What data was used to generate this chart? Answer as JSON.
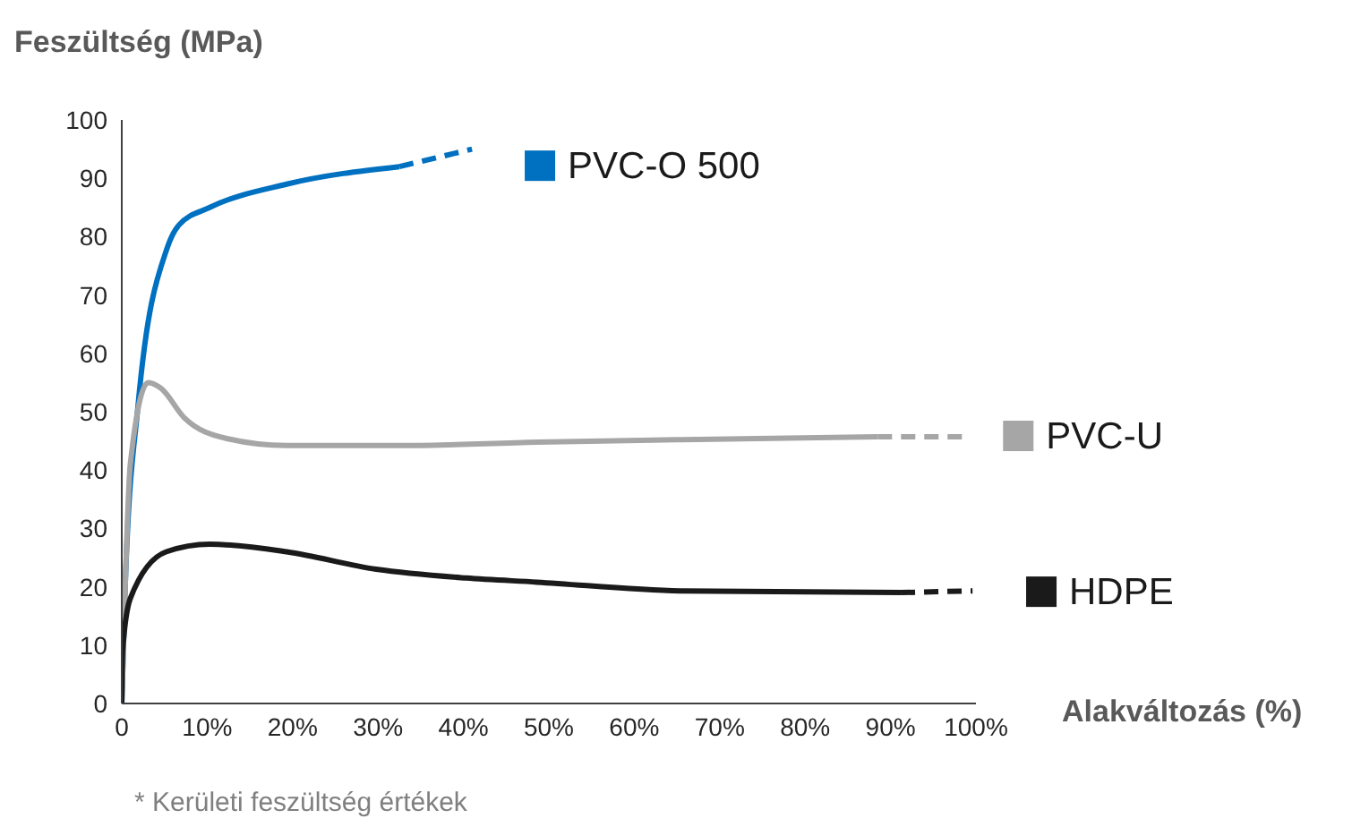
{
  "chart_data": {
    "type": "line",
    "title": "Feszültség (MPa)",
    "xlabel": "Alakváltozás (%)",
    "annotations": [
      "* Kerületi feszültség értékek"
    ],
    "xlim": [
      0,
      100
    ],
    "xticks": [
      {
        "value": 0,
        "label": "0"
      },
      {
        "value": 10,
        "label": "10%"
      },
      {
        "value": 20,
        "label": "20%"
      },
      {
        "value": 30,
        "label": "30%"
      },
      {
        "value": 40,
        "label": "40%"
      },
      {
        "value": 50,
        "label": "50%"
      },
      {
        "value": 60,
        "label": "60%"
      },
      {
        "value": 70,
        "label": "70%"
      },
      {
        "value": 80,
        "label": "80%"
      },
      {
        "value": 90,
        "label": "90%"
      },
      {
        "value": 100,
        "label": "100%"
      }
    ],
    "ylim": [
      0,
      100
    ],
    "yticks": [
      0,
      10,
      20,
      30,
      40,
      50,
      60,
      70,
      80,
      90,
      100
    ],
    "grid": false,
    "legend": "right",
    "marker": "none",
    "series": [
      {
        "name": "PVC-O 500",
        "color": "#0070c0",
        "line_style": "solid",
        "x": [
          0,
          0.4,
          1.9,
          5.3,
          6.7,
          10.3,
          19.3,
          32.5
        ],
        "values": [
          0,
          20,
          51,
          78,
          82,
          85,
          89,
          92
        ]
      },
      {
        "color": "#0070c0",
        "line_style": "dashed",
        "x": [
          32.5,
          41
        ],
        "values": [
          92,
          95
        ]
      },
      {
        "name": "PVC-U",
        "color": "#a6a6a6",
        "line_style": "solid",
        "x": [
          0,
          0.2,
          1,
          3.1,
          4.6,
          7.3,
          12.3,
          19.3,
          33,
          48.6,
          65,
          88.5
        ],
        "values": [
          0,
          10,
          41,
          55,
          54,
          49,
          45.4,
          44.2,
          44.2,
          44.8,
          45.2,
          45.7
        ]
      },
      {
        "color": "#a6a6a6",
        "line_style": "dashed",
        "x": [
          88.5,
          99
        ],
        "values": [
          45.7,
          45.7
        ]
      },
      {
        "name": "HDPE",
        "color": "#1a1a1a",
        "line_style": "solid",
        "x": [
          0,
          0.1,
          1,
          5.2,
          10.3,
          19.3,
          29.8,
          40.3,
          48.6,
          65.4,
          91.2
        ],
        "values": [
          0,
          9,
          18,
          26,
          27.3,
          26,
          23,
          21.5,
          20.8,
          19.3,
          19
        ]
      },
      {
        "color": "#1a1a1a",
        "line_style": "dashed",
        "x": [
          91.2,
          99.6
        ],
        "values": [
          19,
          19.3
        ]
      }
    ]
  }
}
